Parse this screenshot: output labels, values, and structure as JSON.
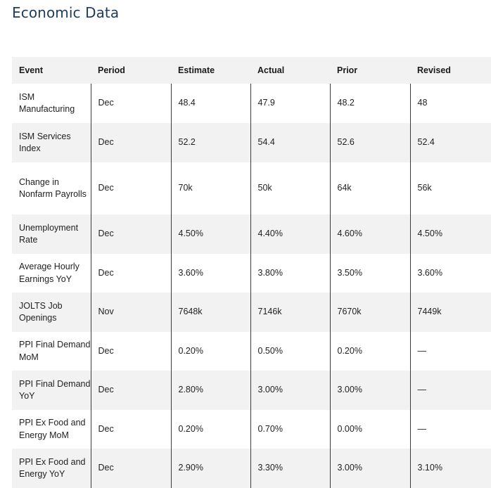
{
  "page": {
    "title": "Economic Data"
  },
  "table": {
    "columns": [
      "Event",
      "Period",
      "Estimate",
      "Actual",
      "Prior",
      "Revised"
    ],
    "rows": [
      [
        "ISM Manufacturing",
        "Dec",
        "48.4",
        "47.9",
        "48.2",
        "48"
      ],
      [
        "ISM Services Index",
        "Dec",
        "52.2",
        "54.4",
        "52.6",
        "52.4"
      ],
      [
        "Change in Nonfarm Payrolls",
        "Dec",
        "70k",
        "50k",
        "64k",
        "56k"
      ],
      [
        "Unemployment Rate",
        "Dec",
        "4.50%",
        "4.40%",
        "4.60%",
        "4.50%"
      ],
      [
        "Average Hourly Earnings YoY",
        "Dec",
        "3.60%",
        "3.80%",
        "3.50%",
        "3.60%"
      ],
      [
        "JOLTS Job Openings",
        "Nov",
        "7648k",
        "7146k",
        "7670k",
        "7449k"
      ],
      [
        "PPI Final Demand MoM",
        "Dec",
        "0.20%",
        "0.50%",
        "0.20%",
        "—"
      ],
      [
        "PPI Final Demand YoY",
        "Dec",
        "2.80%",
        "3.00%",
        "3.00%",
        "—"
      ],
      [
        "PPI Ex Food and Energy MoM",
        "Dec",
        "0.20%",
        "0.70%",
        "0.00%",
        "—"
      ],
      [
        "PPI Ex Food and Energy YoY",
        "Dec",
        "2.90%",
        "3.30%",
        "3.00%",
        "3.10%"
      ]
    ]
  },
  "colors": {
    "title": "#1e3a5f",
    "header_bg": "#f2f2f2",
    "stripe_bg": "#f2f2f2",
    "column_divider": "#3a3a3a"
  }
}
